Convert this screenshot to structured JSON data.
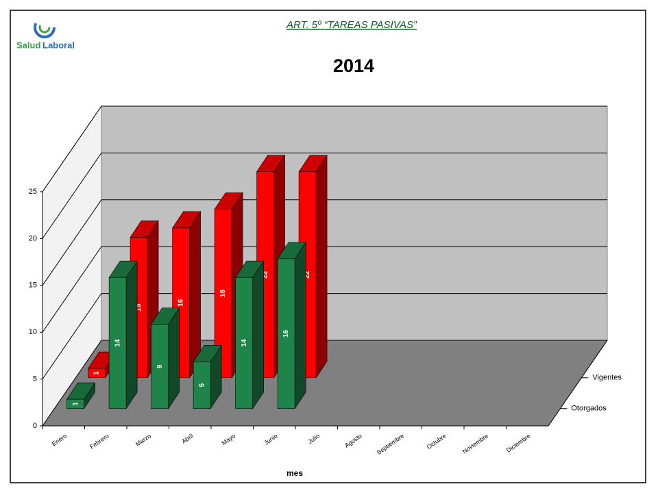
{
  "header": {
    "logo_text": [
      "Salud",
      "Laboral"
    ],
    "heading": "ART. 5º “TAREAS PASIVAS”"
  },
  "chart_data": {
    "type": "bar3d",
    "title": "2014",
    "x_label": "mes",
    "categories": [
      "Enero",
      "Febrero",
      "Marzo",
      "Abril",
      "Mayo",
      "Junio",
      "Julio",
      "Agosto",
      "Septiembre",
      "Octubre",
      "Noviembre",
      "Diciembre"
    ],
    "series": [
      {
        "name": "Otorgados",
        "color": "#1e8449",
        "values": [
          1,
          14,
          9,
          5,
          14,
          16,
          null,
          null,
          null,
          null,
          null,
          null
        ]
      },
      {
        "name": "Vigentes",
        "color": "#ff0000",
        "values": [
          1,
          15,
          16,
          18,
          22,
          22,
          null,
          null,
          null,
          null,
          null,
          null
        ]
      }
    ],
    "ylim": [
      0,
      25
    ],
    "yticks": [
      0,
      5,
      10,
      15,
      20,
      25
    ],
    "grid": true
  }
}
